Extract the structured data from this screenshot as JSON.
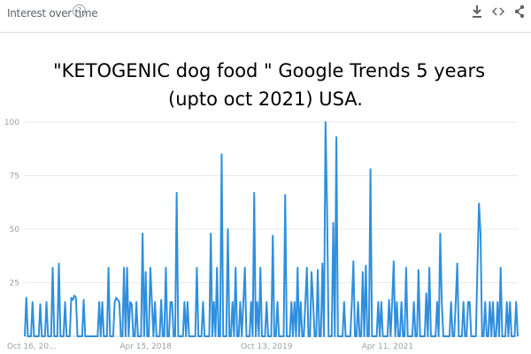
{
  "header": {
    "title": "Interest over time",
    "help_glyph": "?",
    "icons": [
      "download-icon",
      "embed-icon",
      "share-icon"
    ]
  },
  "annotation": {
    "line1": "\"KETOGENIC dog food \" Google Trends 5 years",
    "line2": "(upto oct 2021) USA."
  },
  "colors": {
    "line": "#2f8fde",
    "grid": "#e8e8e8",
    "axis_text": "#9aa0a6"
  },
  "chart_data": {
    "type": "line",
    "title": "",
    "xlabel": "",
    "ylabel": "",
    "ylim": [
      0,
      100
    ],
    "y_ticks": [
      25,
      50,
      75,
      100
    ],
    "x_tick_labels": [
      "Oct 16, 20...",
      "Apr 15, 2018",
      "Oct 13, 2019",
      "Apr 11, 2021"
    ],
    "x_tick_index": [
      0,
      78,
      156,
      234
    ],
    "grid": true,
    "series": [
      {
        "values": [
          0,
          18,
          0,
          0,
          0,
          16,
          0,
          0,
          0,
          0,
          15,
          0,
          0,
          0,
          16,
          0,
          0,
          0,
          32,
          0,
          0,
          0,
          34,
          0,
          0,
          0,
          16,
          0,
          0,
          0,
          18,
          17,
          19,
          18,
          0,
          0,
          0,
          0,
          17,
          0,
          0,
          0,
          0,
          0,
          0,
          0,
          0,
          0,
          16,
          0,
          16,
          0,
          0,
          0,
          32,
          0,
          0,
          0,
          16,
          18,
          17,
          16,
          0,
          0,
          32,
          0,
          32,
          0,
          16,
          15,
          0,
          0,
          16,
          0,
          0,
          0,
          48,
          0,
          30,
          0,
          0,
          32,
          16,
          0,
          16,
          0,
          0,
          0,
          17,
          0,
          0,
          32,
          0,
          0,
          16,
          16,
          0,
          0,
          67,
          0,
          0,
          0,
          0,
          16,
          0,
          16,
          0,
          0,
          0,
          0,
          0,
          32,
          0,
          0,
          0,
          16,
          0,
          0,
          0,
          0,
          48,
          0,
          16,
          0,
          32,
          0,
          0,
          85,
          0,
          0,
          0,
          50,
          0,
          0,
          16,
          0,
          32,
          0,
          0,
          16,
          0,
          16,
          32,
          0,
          0,
          0,
          16,
          0,
          67,
          0,
          16,
          0,
          32,
          0,
          0,
          0,
          16,
          0,
          0,
          0,
          47,
          0,
          0,
          16,
          0,
          0,
          0,
          0,
          66,
          0,
          0,
          0,
          16,
          0,
          16,
          0,
          32,
          0,
          16,
          0,
          0,
          16,
          32,
          0,
          0,
          30,
          16,
          0,
          0,
          31,
          0,
          0,
          34,
          0,
          100,
          60,
          0,
          0,
          0,
          53,
          0,
          93,
          0,
          0,
          0,
          0,
          16,
          0,
          0,
          0,
          0,
          16,
          35,
          0,
          0,
          16,
          0,
          0,
          30,
          0,
          33,
          0,
          0,
          78,
          0,
          0,
          0,
          0,
          16,
          0,
          16,
          0,
          0,
          0,
          0,
          17,
          0,
          16,
          35,
          0,
          16,
          0,
          0,
          16,
          0,
          0,
          32,
          0,
          0,
          0,
          0,
          16,
          0,
          0,
          31,
          0,
          0,
          0,
          0,
          20,
          0,
          32,
          0,
          0,
          0,
          0,
          16,
          0,
          48,
          16,
          0,
          0,
          0,
          0,
          0,
          16,
          0,
          0,
          16,
          34,
          0,
          0,
          0,
          16,
          0,
          0,
          16,
          16,
          0,
          0,
          0,
          0,
          32,
          62,
          48,
          0,
          0,
          16,
          0,
          0,
          16,
          0,
          16,
          0,
          0,
          16,
          0,
          32,
          0,
          0,
          0,
          16,
          0,
          16,
          0,
          0,
          0,
          16,
          0
        ]
      }
    ]
  }
}
